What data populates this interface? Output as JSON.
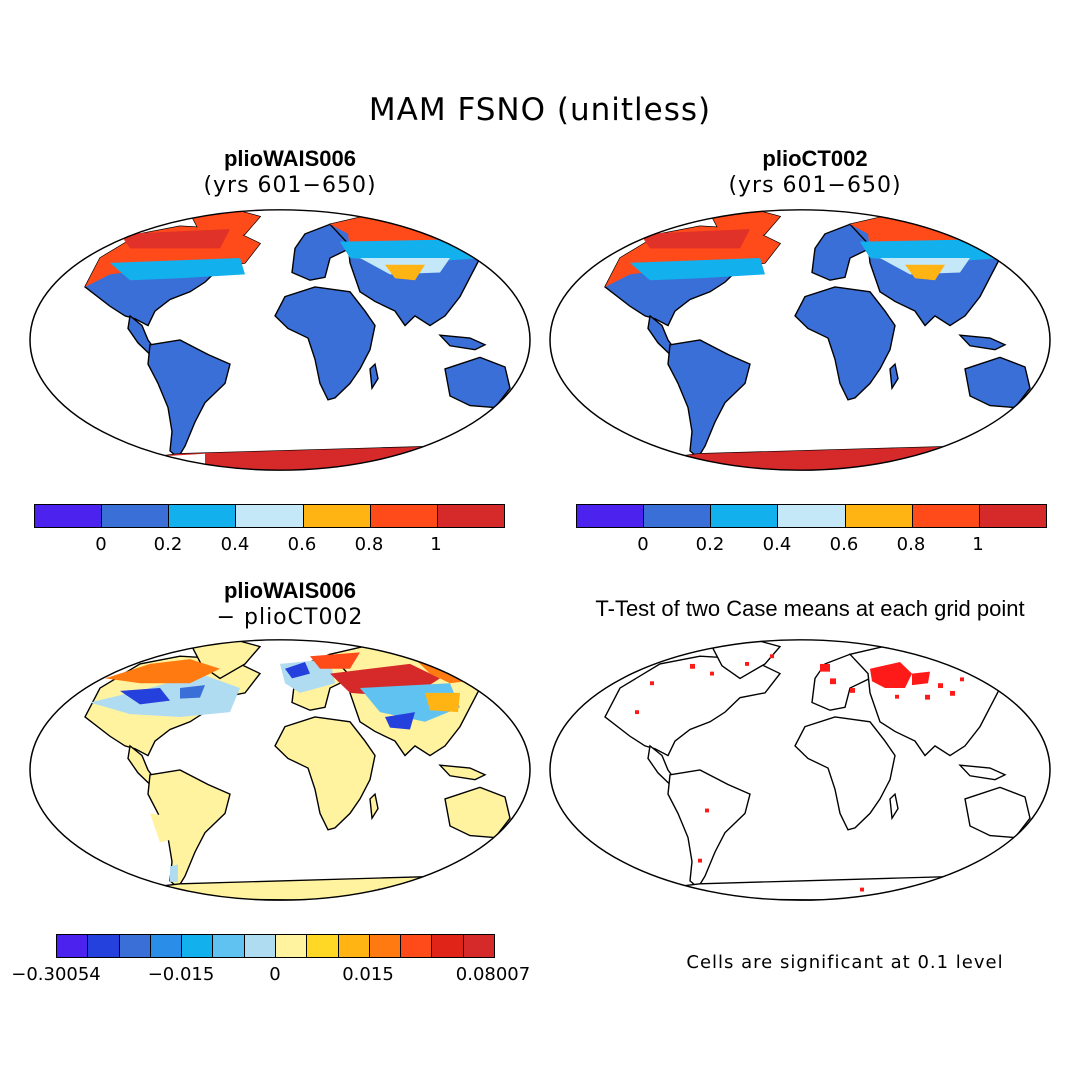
{
  "figure": {
    "title": "MAM FSNO (unitless)",
    "footnote": "Cells are significant at 0.1 level"
  },
  "colors": {
    "land": "#3a6fd8",
    "ocean": "#ffffff",
    "coast": "#000000",
    "snow_high": "#e03228",
    "snow_mid": "#ff4a1a",
    "diff_land": "#fff3a0",
    "significant": "#ff1a1a"
  },
  "panels": [
    {
      "id": "top-left",
      "title": "plioWAIS006",
      "subtitle": "(yrs 601−650)",
      "colorbar": {
        "colors": [
          "#4b22ee",
          "#3a6fd8",
          "#13b0ee",
          "#c5e8f8",
          "#ffb414",
          "#ff4a1a",
          "#d62a2a"
        ],
        "ticks": [
          "0",
          "0.2",
          "0.4",
          "0.6",
          "0.8",
          "1"
        ]
      }
    },
    {
      "id": "top-right",
      "title": "plioCT002",
      "subtitle": "(yrs 601−650)",
      "colorbar": {
        "colors": [
          "#4b22ee",
          "#3a6fd8",
          "#13b0ee",
          "#c5e8f8",
          "#ffb414",
          "#ff4a1a",
          "#d62a2a"
        ],
        "ticks": [
          "0",
          "0.2",
          "0.4",
          "0.6",
          "0.8",
          "1"
        ]
      }
    },
    {
      "id": "bottom-left",
      "title": "plioWAIS006",
      "subtitle": "− plioCT002",
      "colorbar": {
        "colors": [
          "#4b22ee",
          "#2440dd",
          "#3a6fd8",
          "#2a8ee8",
          "#13b0ee",
          "#60c2f0",
          "#b0dcf2",
          "#fff3a0",
          "#ffd826",
          "#ffb414",
          "#ff7a10",
          "#ff4a1a",
          "#e02418",
          "#d62a2a"
        ],
        "ticks": [
          "−0.30054",
          "−0.015",
          "0",
          "0.015",
          "0.08007"
        ]
      }
    },
    {
      "id": "bottom-right",
      "title": "T-Test of two Case means at each grid point"
    }
  ]
}
